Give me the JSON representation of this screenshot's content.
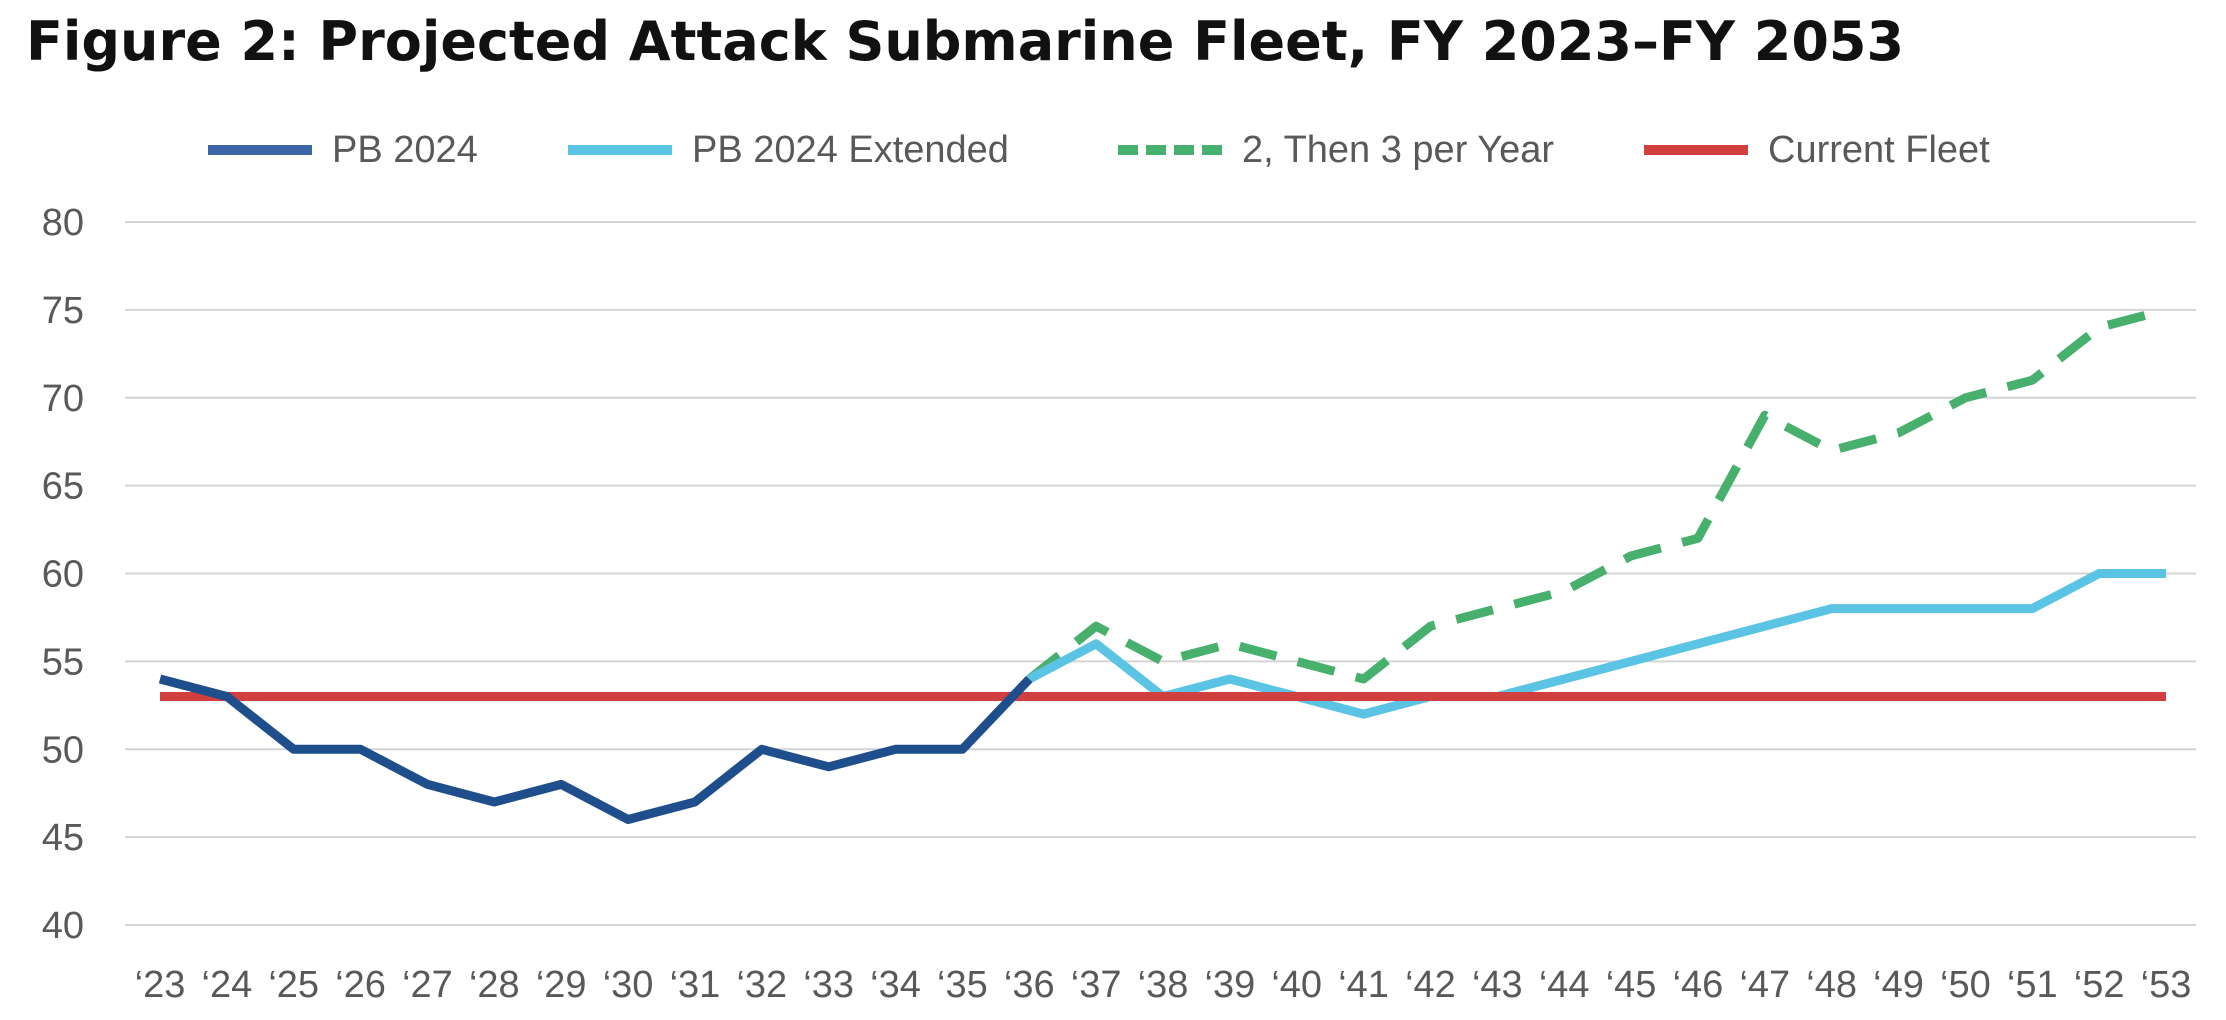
{
  "title": "Figure 2: Projected Attack Submarine Fleet, FY 2023–FY 2053",
  "chart_data": {
    "type": "line",
    "title": "Figure 2: Projected Attack Submarine Fleet, FY 2023–FY 2053",
    "xlabel": "",
    "ylabel": "",
    "ylim": [
      40,
      80
    ],
    "yticks": [
      "80",
      "75",
      "70",
      "65",
      "60",
      "55",
      "50",
      "45",
      "40"
    ],
    "categories": [
      "‘23",
      "‘24",
      "‘25",
      "‘26",
      "‘27",
      "‘28",
      "‘29",
      "‘30",
      "‘31",
      "‘32",
      "‘33",
      "‘34",
      "‘35",
      "‘36",
      "‘37",
      "‘38",
      "‘39",
      "‘40",
      "‘41",
      "‘42",
      "‘43",
      "‘44",
      "‘45",
      "‘46",
      "‘47",
      "‘48",
      "‘49",
      "‘50",
      "‘51",
      "‘52",
      "‘53"
    ],
    "grid": true,
    "legend_position": "top",
    "series": [
      {
        "name": "PB 2024",
        "color": "#1f4e8c",
        "style": "solid",
        "values": [
          54,
          53,
          50,
          50,
          48,
          47,
          48,
          46,
          47,
          50,
          49,
          50,
          50,
          54,
          null,
          null,
          null,
          null,
          null,
          null,
          null,
          null,
          null,
          null,
          null,
          null,
          null,
          null,
          null,
          null,
          null
        ]
      },
      {
        "name": "PB 2024 Extended",
        "color": "#5bc3e3",
        "style": "solid",
        "values": [
          null,
          null,
          null,
          null,
          null,
          null,
          null,
          null,
          null,
          null,
          null,
          null,
          null,
          54,
          56,
          53,
          54,
          53,
          52,
          53,
          53,
          54,
          55,
          56,
          57,
          58,
          58,
          58,
          58,
          60,
          60
        ]
      },
      {
        "name": "2, Then 3 per Year",
        "color": "#47b06d",
        "style": "dashed",
        "values": [
          null,
          null,
          null,
          null,
          null,
          null,
          null,
          null,
          null,
          null,
          null,
          null,
          null,
          54,
          57,
          55,
          56,
          55,
          54,
          57,
          58,
          59,
          61,
          62,
          69,
          67,
          68,
          70,
          71,
          74,
          75
        ]
      },
      {
        "name": "Current Fleet",
        "color": "#d13f3f",
        "style": "solid",
        "values": [
          53,
          53,
          53,
          53,
          53,
          53,
          53,
          53,
          53,
          53,
          53,
          53,
          53,
          53,
          53,
          53,
          53,
          53,
          53,
          53,
          53,
          53,
          53,
          53,
          53,
          53,
          53,
          53,
          53,
          53,
          53
        ]
      }
    ]
  }
}
